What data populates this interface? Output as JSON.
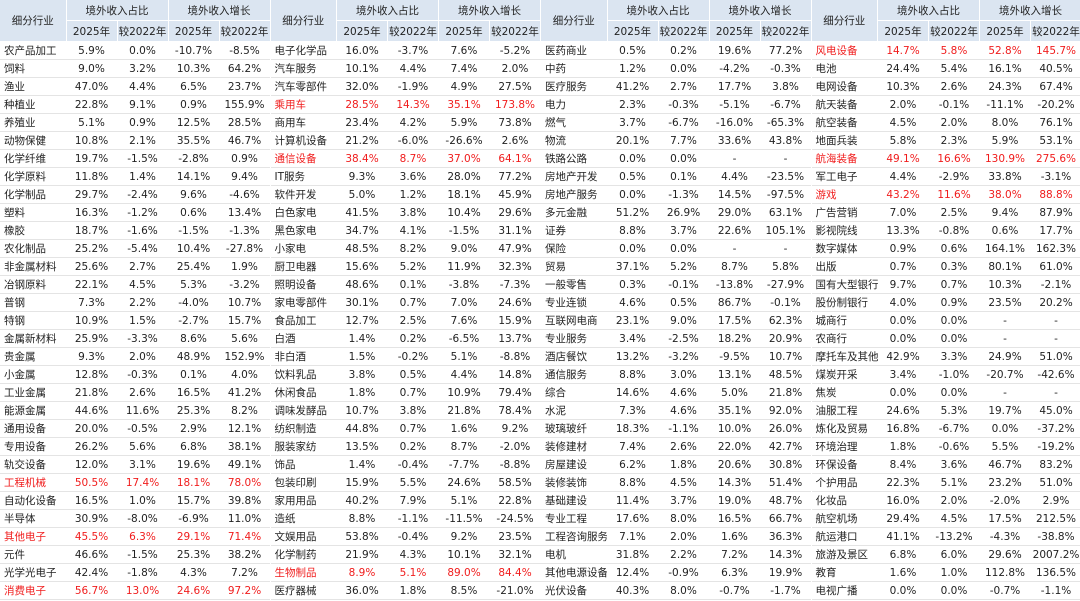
{
  "header": {
    "industry": "细分行业",
    "share": "境外收入占比",
    "growth": "境外收入增长",
    "y2025": "2025年",
    "vs2022": "较2022年"
  },
  "panels": [
    {
      "rows": [
        {
          "cells": [
            "农产品加工",
            "5.9%",
            "0.0%",
            "-10.7%",
            "-8.5%"
          ]
        },
        {
          "cells": [
            "饲料",
            "9.0%",
            "3.2%",
            "10.3%",
            "64.2%"
          ]
        },
        {
          "cells": [
            "渔业",
            "47.0%",
            "4.4%",
            "6.5%",
            "23.7%"
          ]
        },
        {
          "cells": [
            "种植业",
            "22.8%",
            "9.1%",
            "0.9%",
            "155.9%"
          ]
        },
        {
          "cells": [
            "养殖业",
            "5.1%",
            "0.9%",
            "12.5%",
            "28.5%"
          ]
        },
        {
          "cells": [
            "动物保健",
            "10.8%",
            "2.1%",
            "35.5%",
            "46.7%"
          ]
        },
        {
          "cells": [
            "化学纤维",
            "19.7%",
            "-1.5%",
            "-2.8%",
            "0.9%"
          ]
        },
        {
          "cells": [
            "化学原料",
            "11.8%",
            "1.4%",
            "14.1%",
            "9.4%"
          ]
        },
        {
          "cells": [
            "化学制品",
            "29.7%",
            "-2.4%",
            "9.6%",
            "-4.6%"
          ]
        },
        {
          "cells": [
            "塑料",
            "16.3%",
            "-1.2%",
            "0.6%",
            "13.4%"
          ]
        },
        {
          "cells": [
            "橡胶",
            "18.7%",
            "-1.6%",
            "-1.5%",
            "-1.3%"
          ]
        },
        {
          "cells": [
            "农化制品",
            "25.2%",
            "-5.4%",
            "10.4%",
            "-27.8%"
          ]
        },
        {
          "cells": [
            "非金属材料",
            "25.6%",
            "2.7%",
            "25.4%",
            "1.9%"
          ]
        },
        {
          "cells": [
            "冶钢原料",
            "22.1%",
            "4.5%",
            "5.3%",
            "-3.2%"
          ]
        },
        {
          "cells": [
            "普钢",
            "7.3%",
            "2.2%",
            "-4.0%",
            "10.7%"
          ]
        },
        {
          "cells": [
            "特钢",
            "10.9%",
            "1.5%",
            "-2.7%",
            "15.7%"
          ]
        },
        {
          "cells": [
            "金属新材料",
            "25.9%",
            "-3.3%",
            "8.6%",
            "5.6%"
          ]
        },
        {
          "cells": [
            "贵金属",
            "9.3%",
            "2.0%",
            "48.9%",
            "152.9%"
          ]
        },
        {
          "cells": [
            "小金属",
            "12.8%",
            "-0.3%",
            "0.1%",
            "4.0%"
          ]
        },
        {
          "cells": [
            "工业金属",
            "21.8%",
            "2.6%",
            "16.5%",
            "41.2%"
          ]
        },
        {
          "cells": [
            "能源金属",
            "44.6%",
            "11.6%",
            "25.3%",
            "8.2%"
          ]
        },
        {
          "cells": [
            "通用设备",
            "20.0%",
            "-0.5%",
            "2.9%",
            "12.1%"
          ]
        },
        {
          "cells": [
            "专用设备",
            "26.2%",
            "5.6%",
            "6.8%",
            "38.1%"
          ]
        },
        {
          "cells": [
            "轨交设备",
            "12.0%",
            "3.1%",
            "19.6%",
            "49.1%"
          ]
        },
        {
          "cells": [
            "工程机械",
            "50.5%",
            "17.4%",
            "18.1%",
            "78.0%"
          ],
          "highlight": true
        },
        {
          "cells": [
            "自动化设备",
            "16.5%",
            "1.0%",
            "15.7%",
            "39.8%"
          ]
        },
        {
          "cells": [
            "半导体",
            "30.9%",
            "-8.0%",
            "-6.9%",
            "11.0%"
          ]
        },
        {
          "cells": [
            "其他电子",
            "45.5%",
            "6.3%",
            "29.1%",
            "71.4%"
          ],
          "highlight": true
        },
        {
          "cells": [
            "元件",
            "46.6%",
            "-1.5%",
            "25.3%",
            "38.2%"
          ]
        },
        {
          "cells": [
            "光学光电子",
            "42.4%",
            "-1.8%",
            "4.3%",
            "7.2%"
          ]
        },
        {
          "cells": [
            "消费电子",
            "56.7%",
            "13.0%",
            "24.6%",
            "97.2%"
          ],
          "highlight": true
        }
      ]
    },
    {
      "rows": [
        {
          "cells": [
            "电子化学品",
            "16.0%",
            "-3.7%",
            "7.6%",
            "-5.2%"
          ]
        },
        {
          "cells": [
            "汽车服务",
            "10.1%",
            "4.4%",
            "7.4%",
            "2.0%"
          ]
        },
        {
          "cells": [
            "汽车零部件",
            "32.0%",
            "-1.9%",
            "4.9%",
            "27.5%"
          ]
        },
        {
          "cells": [
            "乘用车",
            "28.5%",
            "14.3%",
            "35.1%",
            "173.8%"
          ],
          "highlight": true
        },
        {
          "cells": [
            "商用车",
            "23.4%",
            "4.2%",
            "5.9%",
            "73.8%"
          ]
        },
        {
          "cells": [
            "计算机设备",
            "21.2%",
            "-6.0%",
            "-26.6%",
            "2.6%"
          ]
        },
        {
          "cells": [
            "通信设备",
            "38.4%",
            "8.7%",
            "37.0%",
            "64.1%"
          ],
          "highlight": true
        },
        {
          "cells": [
            "IT服务",
            "9.3%",
            "3.6%",
            "28.0%",
            "77.2%"
          ]
        },
        {
          "cells": [
            "软件开发",
            "5.0%",
            "1.2%",
            "18.1%",
            "45.9%"
          ]
        },
        {
          "cells": [
            "白色家电",
            "41.5%",
            "3.8%",
            "10.4%",
            "29.6%"
          ]
        },
        {
          "cells": [
            "黑色家电",
            "34.7%",
            "4.1%",
            "-1.5%",
            "31.1%"
          ]
        },
        {
          "cells": [
            "小家电",
            "48.5%",
            "8.2%",
            "9.0%",
            "47.9%"
          ]
        },
        {
          "cells": [
            "厨卫电器",
            "15.6%",
            "5.2%",
            "11.9%",
            "32.3%"
          ]
        },
        {
          "cells": [
            "照明设备",
            "48.6%",
            "0.1%",
            "-3.8%",
            "-7.3%"
          ]
        },
        {
          "cells": [
            "家电零部件",
            "30.1%",
            "0.7%",
            "7.0%",
            "24.6%"
          ]
        },
        {
          "cells": [
            "食品加工",
            "12.7%",
            "2.5%",
            "7.6%",
            "15.9%"
          ]
        },
        {
          "cells": [
            "白酒",
            "1.4%",
            "0.2%",
            "-6.5%",
            "13.7%"
          ]
        },
        {
          "cells": [
            "非白酒",
            "1.5%",
            "-0.2%",
            "5.1%",
            "-8.8%"
          ]
        },
        {
          "cells": [
            "饮料乳品",
            "3.8%",
            "0.5%",
            "4.4%",
            "14.8%"
          ]
        },
        {
          "cells": [
            "休闲食品",
            "1.8%",
            "0.7%",
            "10.9%",
            "79.4%"
          ]
        },
        {
          "cells": [
            "调味发酵品",
            "10.7%",
            "3.8%",
            "21.8%",
            "78.4%"
          ]
        },
        {
          "cells": [
            "纺织制造",
            "44.8%",
            "0.7%",
            "1.6%",
            "9.2%"
          ]
        },
        {
          "cells": [
            "服装家纺",
            "13.5%",
            "0.2%",
            "8.7%",
            "-2.0%"
          ]
        },
        {
          "cells": [
            "饰品",
            "1.4%",
            "-0.4%",
            "-7.7%",
            "-8.8%"
          ]
        },
        {
          "cells": [
            "包装印刷",
            "15.9%",
            "5.5%",
            "24.6%",
            "58.5%"
          ]
        },
        {
          "cells": [
            "家用用品",
            "40.2%",
            "7.9%",
            "5.1%",
            "22.8%"
          ]
        },
        {
          "cells": [
            "造纸",
            "8.8%",
            "-1.1%",
            "-11.5%",
            "-24.5%"
          ]
        },
        {
          "cells": [
            "文娱用品",
            "53.8%",
            "-0.4%",
            "9.2%",
            "23.5%"
          ]
        },
        {
          "cells": [
            "化学制药",
            "21.9%",
            "4.3%",
            "10.1%",
            "32.1%"
          ]
        },
        {
          "cells": [
            "生物制品",
            "8.9%",
            "5.1%",
            "89.0%",
            "84.4%"
          ],
          "highlight": true
        },
        {
          "cells": [
            "医疗器械",
            "36.0%",
            "1.8%",
            "8.5%",
            "-21.0%"
          ]
        }
      ]
    },
    {
      "rows": [
        {
          "cells": [
            "医药商业",
            "0.5%",
            "0.2%",
            "19.6%",
            "77.2%"
          ]
        },
        {
          "cells": [
            "中药",
            "1.2%",
            "0.0%",
            "-4.2%",
            "-0.3%"
          ]
        },
        {
          "cells": [
            "医疗服务",
            "41.2%",
            "2.7%",
            "17.7%",
            "3.8%"
          ]
        },
        {
          "cells": [
            "电力",
            "2.3%",
            "-0.3%",
            "-5.1%",
            "-6.7%"
          ]
        },
        {
          "cells": [
            "燃气",
            "3.7%",
            "-6.7%",
            "-16.0%",
            "-65.3%"
          ]
        },
        {
          "cells": [
            "物流",
            "20.1%",
            "7.7%",
            "33.6%",
            "43.8%"
          ]
        },
        {
          "cells": [
            "铁路公路",
            "0.0%",
            "0.0%",
            "-",
            "-"
          ]
        },
        {
          "cells": [
            "房地产开发",
            "0.5%",
            "0.1%",
            "4.4%",
            "-23.5%"
          ]
        },
        {
          "cells": [
            "房地产服务",
            "0.0%",
            "-1.3%",
            "14.5%",
            "-97.5%"
          ]
        },
        {
          "cells": [
            "多元金融",
            "51.2%",
            "26.9%",
            "29.0%",
            "63.1%"
          ]
        },
        {
          "cells": [
            "证券",
            "8.8%",
            "3.7%",
            "22.6%",
            "105.1%"
          ]
        },
        {
          "cells": [
            "保险",
            "0.0%",
            "0.0%",
            "-",
            "-"
          ]
        },
        {
          "cells": [
            "贸易",
            "37.1%",
            "5.2%",
            "8.7%",
            "5.8%"
          ]
        },
        {
          "cells": [
            "一般零售",
            "0.3%",
            "-0.1%",
            "-13.8%",
            "-27.9%"
          ]
        },
        {
          "cells": [
            "专业连锁",
            "4.6%",
            "0.5%",
            "86.7%",
            "-0.1%"
          ]
        },
        {
          "cells": [
            "互联网电商",
            "23.1%",
            "9.0%",
            "17.5%",
            "62.3%"
          ]
        },
        {
          "cells": [
            "专业服务",
            "3.4%",
            "-2.5%",
            "18.2%",
            "20.9%"
          ]
        },
        {
          "cells": [
            "酒店餐饮",
            "13.2%",
            "-3.2%",
            "-9.5%",
            "10.7%"
          ]
        },
        {
          "cells": [
            "通信服务",
            "8.8%",
            "3.0%",
            "13.1%",
            "48.5%"
          ]
        },
        {
          "cells": [
            "综合",
            "14.6%",
            "4.6%",
            "5.0%",
            "21.8%"
          ]
        },
        {
          "cells": [
            "水泥",
            "7.3%",
            "4.6%",
            "35.1%",
            "92.0%"
          ]
        },
        {
          "cells": [
            "玻璃玻纤",
            "18.3%",
            "-1.1%",
            "10.0%",
            "26.0%"
          ]
        },
        {
          "cells": [
            "装修建材",
            "7.4%",
            "2.6%",
            "22.0%",
            "42.7%"
          ]
        },
        {
          "cells": [
            "房屋建设",
            "6.2%",
            "1.8%",
            "20.6%",
            "30.8%"
          ]
        },
        {
          "cells": [
            "装修装饰",
            "8.8%",
            "4.5%",
            "14.3%",
            "51.4%"
          ]
        },
        {
          "cells": [
            "基础建设",
            "11.4%",
            "3.7%",
            "19.0%",
            "48.7%"
          ]
        },
        {
          "cells": [
            "专业工程",
            "17.6%",
            "8.0%",
            "16.5%",
            "66.7%"
          ]
        },
        {
          "cells": [
            "工程咨询服务",
            "7.1%",
            "2.0%",
            "1.6%",
            "36.3%"
          ]
        },
        {
          "cells": [
            "电机",
            "31.8%",
            "2.2%",
            "7.2%",
            "14.3%"
          ]
        },
        {
          "cells": [
            "其他电源设备",
            "12.4%",
            "-0.9%",
            "6.3%",
            "19.9%"
          ]
        },
        {
          "cells": [
            "光伏设备",
            "40.3%",
            "8.0%",
            "-0.7%",
            "-1.7%"
          ]
        }
      ]
    },
    {
      "rows": [
        {
          "cells": [
            "风电设备",
            "14.7%",
            "5.8%",
            "52.8%",
            "145.7%"
          ],
          "highlight": true
        },
        {
          "cells": [
            "电池",
            "24.4%",
            "5.4%",
            "16.1%",
            "40.5%"
          ]
        },
        {
          "cells": [
            "电网设备",
            "10.3%",
            "2.6%",
            "24.3%",
            "67.4%"
          ]
        },
        {
          "cells": [
            "航天装备",
            "2.0%",
            "-0.1%",
            "-11.1%",
            "-20.2%"
          ]
        },
        {
          "cells": [
            "航空装备",
            "4.5%",
            "2.0%",
            "8.0%",
            "76.1%"
          ]
        },
        {
          "cells": [
            "地面兵装",
            "5.8%",
            "2.3%",
            "5.9%",
            "53.1%"
          ]
        },
        {
          "cells": [
            "航海装备",
            "49.1%",
            "16.6%",
            "130.9%",
            "275.6%"
          ],
          "highlight": true
        },
        {
          "cells": [
            "军工电子",
            "4.4%",
            "-2.9%",
            "33.8%",
            "-3.1%"
          ]
        },
        {
          "cells": [
            "游戏",
            "43.2%",
            "11.6%",
            "38.0%",
            "88.8%"
          ],
          "highlight": true
        },
        {
          "cells": [
            "广告营销",
            "7.0%",
            "2.5%",
            "9.4%",
            "87.9%"
          ]
        },
        {
          "cells": [
            "影视院线",
            "13.3%",
            "-0.8%",
            "0.6%",
            "17.7%"
          ]
        },
        {
          "cells": [
            "数字媒体",
            "0.9%",
            "0.6%",
            "164.1%",
            "162.3%"
          ]
        },
        {
          "cells": [
            "出版",
            "0.7%",
            "0.3%",
            "80.1%",
            "61.0%"
          ]
        },
        {
          "cells": [
            "国有大型银行",
            "9.7%",
            "0.7%",
            "10.3%",
            "-2.1%"
          ]
        },
        {
          "cells": [
            "股份制银行",
            "4.0%",
            "0.9%",
            "23.5%",
            "20.2%"
          ]
        },
        {
          "cells": [
            "城商行",
            "0.0%",
            "0.0%",
            "-",
            "-"
          ]
        },
        {
          "cells": [
            "农商行",
            "0.0%",
            "0.0%",
            "-",
            "-"
          ]
        },
        {
          "cells": [
            "摩托车及其他",
            "42.9%",
            "3.3%",
            "24.9%",
            "51.0%"
          ]
        },
        {
          "cells": [
            "煤炭开采",
            "3.4%",
            "-1.0%",
            "-20.7%",
            "-42.6%"
          ]
        },
        {
          "cells": [
            "焦炭",
            "0.0%",
            "0.0%",
            "-",
            "-"
          ]
        },
        {
          "cells": [
            "油服工程",
            "24.6%",
            "5.3%",
            "19.7%",
            "45.0%"
          ]
        },
        {
          "cells": [
            "炼化及贸易",
            "16.8%",
            "-6.7%",
            "0.0%",
            "-37.2%"
          ]
        },
        {
          "cells": [
            "环境治理",
            "1.8%",
            "-0.6%",
            "5.5%",
            "-19.2%"
          ]
        },
        {
          "cells": [
            "环保设备",
            "8.4%",
            "3.6%",
            "46.7%",
            "83.2%"
          ]
        },
        {
          "cells": [
            "个护用品",
            "22.3%",
            "5.1%",
            "23.2%",
            "51.0%"
          ]
        },
        {
          "cells": [
            "化妆品",
            "16.0%",
            "2.0%",
            "-2.0%",
            "2.9%"
          ]
        },
        {
          "cells": [
            "航空机场",
            "29.4%",
            "4.5%",
            "17.5%",
            "212.5%"
          ]
        },
        {
          "cells": [
            "航运港口",
            "41.1%",
            "-13.2%",
            "-4.3%",
            "-38.8%"
          ]
        },
        {
          "cells": [
            "旅游及景区",
            "6.8%",
            "6.0%",
            "29.6%",
            "2007.2%"
          ]
        },
        {
          "cells": [
            "教育",
            "1.6%",
            "1.0%",
            "112.8%",
            "136.5%"
          ]
        },
        {
          "cells": [
            "电视广播",
            "0.0%",
            "0.0%",
            "-0.7%",
            "-1.1%"
          ]
        }
      ]
    }
  ]
}
